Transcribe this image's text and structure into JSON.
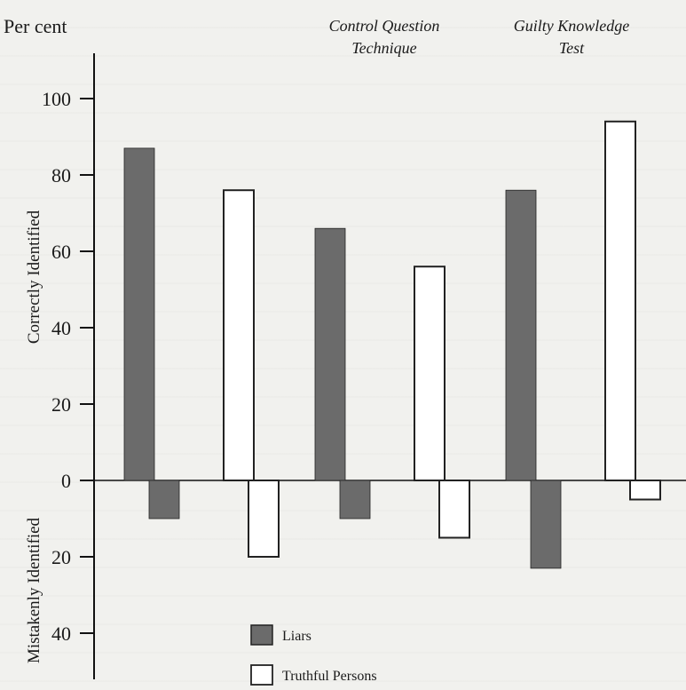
{
  "chart_data": {
    "type": "bar",
    "y_unit_label": "Per cent",
    "upper_axis_label": "Correctly Identified",
    "lower_axis_label": "Mistakenly Identified",
    "group_titles": [
      [
        "Control Question",
        "Technique"
      ],
      [
        "Guilty Knowledge",
        "Test"
      ]
    ],
    "yticks_upper": [
      0,
      20,
      40,
      60,
      80,
      100
    ],
    "yticks_lower": [
      20,
      40
    ],
    "ylim": [
      -50,
      100
    ],
    "series": [
      {
        "name": "Liars",
        "color": "#6b6b6b",
        "values": [
          {
            "group": 0,
            "correct": 87,
            "mistaken": 10
          },
          {
            "group": 1,
            "correct": 66,
            "mistaken": 10
          },
          {
            "group": 2,
            "correct": 76,
            "mistaken": 23
          }
        ]
      },
      {
        "name": "Truthful Persons",
        "color": "#ffffff",
        "values": [
          {
            "group": 0,
            "correct": 76,
            "mistaken": 20
          },
          {
            "group": 1,
            "correct": 56,
            "mistaken": 15
          },
          {
            "group": 2,
            "correct": 94,
            "mistaken": 5
          }
        ]
      }
    ],
    "legend": [
      "Liars",
      "Truthful Persons"
    ],
    "legend_position": "bottom-center"
  }
}
